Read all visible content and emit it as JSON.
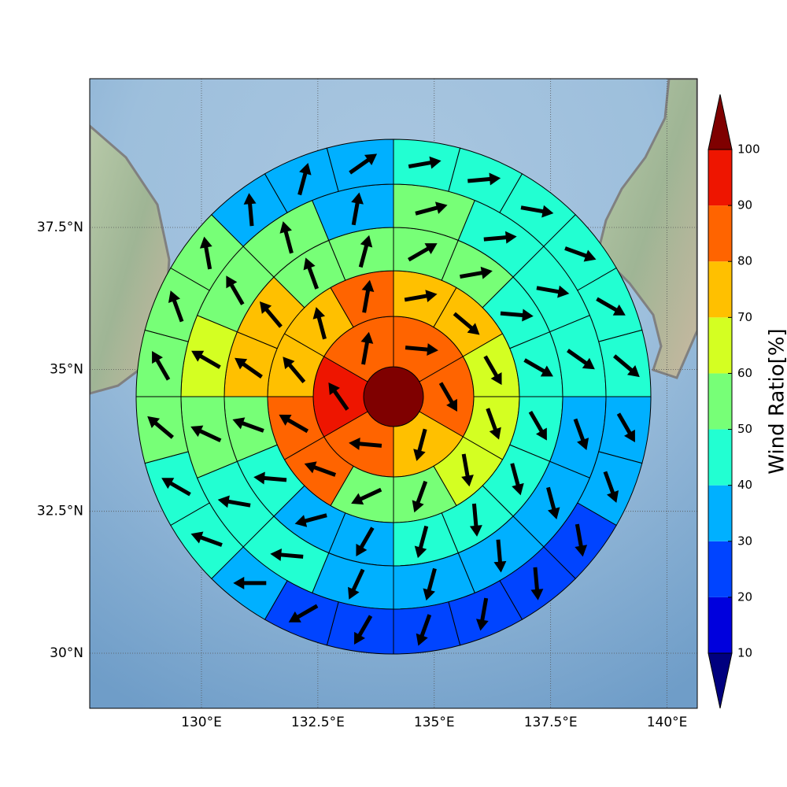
{
  "chart_data": {
    "type": "polar-grid-map",
    "xlim": [
      127.6,
      140.65
    ],
    "ylim": [
      29.03,
      40.12
    ],
    "xticks": [
      {
        "value": 130,
        "label": "130°E"
      },
      {
        "value": 132.5,
        "label": "132.5°E"
      },
      {
        "value": 135,
        "label": "135°E"
      },
      {
        "value": 137.5,
        "label": "137.5°E"
      },
      {
        "value": 140,
        "label": "140°E"
      }
    ],
    "yticks": [
      {
        "value": 30,
        "label": "30°N"
      },
      {
        "value": 32.5,
        "label": "32.5°N"
      },
      {
        "value": 35,
        "label": "35°N"
      },
      {
        "value": 37.5,
        "label": "37.5°N"
      }
    ],
    "grid": true,
    "center": {
      "value": 100
    },
    "rings": [
      {
        "values": [
          85,
          85,
          75,
          85,
          95,
          85
        ],
        "directions": [
          95,
          150,
          195,
          275,
          325,
          10
        ]
      },
      {
        "values": [
          75,
          75,
          65,
          65,
          65,
          55,
          55,
          85,
          85,
          75,
          75,
          85
        ],
        "directions": [
          80,
          130,
          150,
          160,
          170,
          200,
          245,
          290,
          300,
          320,
          345,
          10
        ]
      },
      {
        "values": [
          55,
          55,
          45,
          45,
          45,
          45,
          45,
          45,
          35,
          35,
          45,
          55,
          75,
          75,
          55,
          55
        ],
        "directions": [
          60,
          80,
          95,
          120,
          150,
          165,
          175,
          195,
          210,
          255,
          275,
          290,
          305,
          320,
          340,
          15
        ]
      },
      {
        "values": [
          55,
          45,
          45,
          45,
          35,
          35,
          35,
          35,
          35,
          45,
          45,
          55,
          65,
          55,
          55,
          35
        ],
        "directions": [
          75,
          85,
          100,
          125,
          160,
          165,
          175,
          195,
          205,
          275,
          280,
          295,
          300,
          330,
          345,
          10
        ]
      },
      {
        "values": [
          45,
          45,
          45,
          45,
          45,
          45,
          35,
          35,
          25,
          25,
          25,
          25,
          25,
          25,
          35,
          45,
          45,
          55,
          55,
          55,
          55,
          35,
          35,
          35
        ],
        "directions": [
          80,
          85,
          100,
          110,
          120,
          130,
          150,
          160,
          170,
          175,
          190,
          200,
          210,
          240,
          270,
          290,
          300,
          310,
          330,
          340,
          350,
          355,
          15,
          55
        ]
      }
    ],
    "arrow_color": "#000000",
    "colorbar": {
      "label": "Wind Ratio[%]",
      "ticks": [
        10,
        20,
        30,
        40,
        50,
        60,
        70,
        80,
        90,
        100
      ],
      "colors": [
        "#0000dd",
        "#0044ff",
        "#00b0ff",
        "#22ffd2",
        "#77ff77",
        "#d4ff22",
        "#ffc000",
        "#ff6400",
        "#ee1500"
      ],
      "under_color": "#00007f",
      "over_color": "#7f0000"
    }
  }
}
